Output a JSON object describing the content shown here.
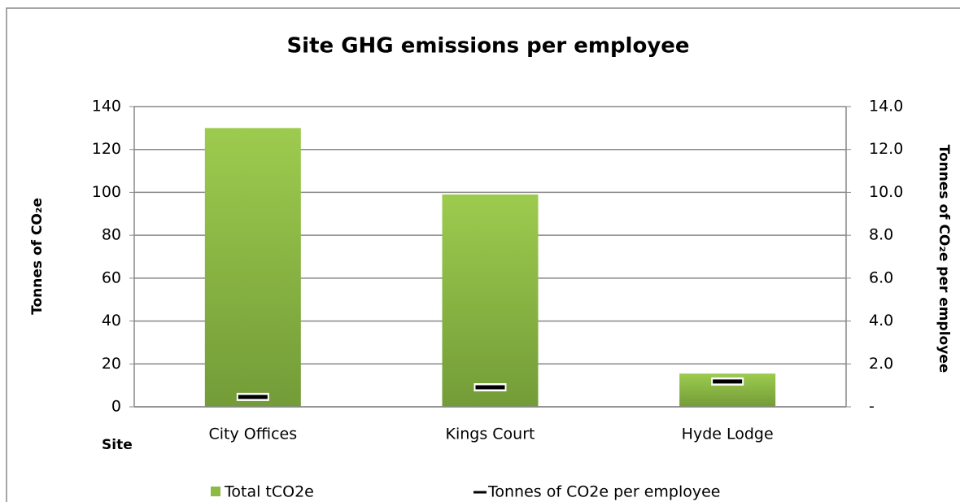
{
  "chart_data": {
    "type": "bar",
    "title": "Site GHG emissions per employee",
    "x_label": "Site",
    "y_label": "Tonnes of CO₂e",
    "y2_label": "Tonnes of CO₂e per employee",
    "categories": [
      "City Offices",
      "Kings Court",
      "Hyde Lodge"
    ],
    "series": [
      {
        "name": "Total tCO2e",
        "color": "#8dba45",
        "values": [
          130,
          99,
          15.5
        ]
      },
      {
        "name": "Tonnes of CO2e per employee",
        "color": "#000000",
        "axis": "y2",
        "values": [
          0.46,
          0.91,
          1.18
        ]
      }
    ],
    "ylim": [
      0,
      140
    ],
    "yticks": [
      0,
      20,
      40,
      60,
      80,
      100,
      120,
      140
    ],
    "y2lim": [
      0,
      14
    ],
    "y2ticks": [
      {
        "value": 0,
        "label": "-"
      },
      {
        "value": 2,
        "label": "2.0"
      },
      {
        "value": 4,
        "label": "4.0"
      },
      {
        "value": 6,
        "label": "6.0"
      },
      {
        "value": 8,
        "label": "8.0"
      },
      {
        "value": 10,
        "label": "10.0"
      },
      {
        "value": 12,
        "label": "12.0"
      },
      {
        "value": 14,
        "label": "14.0"
      }
    ],
    "grid": true,
    "legend": "bottom"
  }
}
